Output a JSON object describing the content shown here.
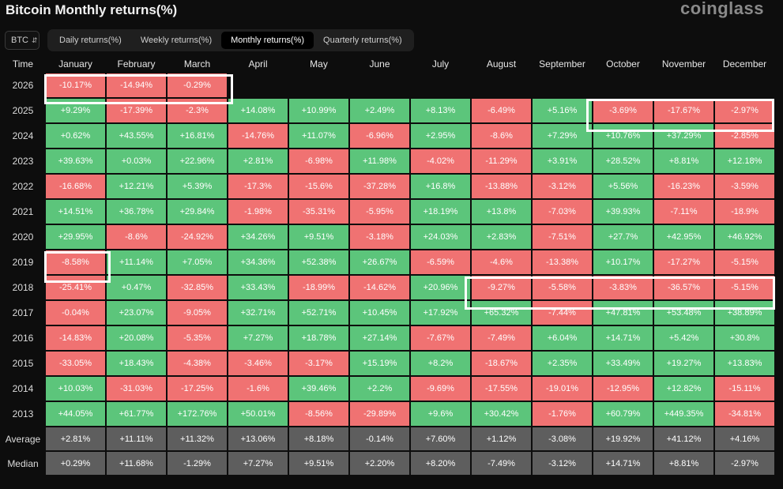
{
  "header": {
    "title": "Bitcoin Monthly returns(%)",
    "brand": "coinglass"
  },
  "asset_select": {
    "value": "BTC"
  },
  "tabs": [
    {
      "label": "Daily returns(%)"
    },
    {
      "label": "Weekly returns(%)"
    },
    {
      "label": "Monthly returns(%)"
    },
    {
      "label": "Quarterly returns(%)"
    }
  ],
  "active_tab": 2,
  "table": {
    "year_header": "Time",
    "months": [
      "January",
      "February",
      "March",
      "April",
      "May",
      "June",
      "July",
      "August",
      "September",
      "October",
      "November",
      "December"
    ],
    "rows": [
      {
        "year": "2026",
        "values": [
          "-10.17%",
          "-14.94%",
          "-0.29%",
          "",
          "",
          "",
          "",
          "",
          "",
          "",
          "",
          ""
        ]
      },
      {
        "year": "2025",
        "values": [
          "+9.29%",
          "-17.39%",
          "-2.3%",
          "+14.08%",
          "+10.99%",
          "+2.49%",
          "+8.13%",
          "-6.49%",
          "+5.16%",
          "-3.69%",
          "-17.67%",
          "-2.97%"
        ]
      },
      {
        "year": "2024",
        "values": [
          "+0.62%",
          "+43.55%",
          "+16.81%",
          "-14.76%",
          "+11.07%",
          "-6.96%",
          "+2.95%",
          "-8.6%",
          "+7.29%",
          "+10.76%",
          "+37.29%",
          "-2.85%"
        ]
      },
      {
        "year": "2023",
        "values": [
          "+39.63%",
          "+0.03%",
          "+22.96%",
          "+2.81%",
          "-6.98%",
          "+11.98%",
          "-4.02%",
          "-11.29%",
          "+3.91%",
          "+28.52%",
          "+8.81%",
          "+12.18%"
        ]
      },
      {
        "year": "2022",
        "values": [
          "-16.68%",
          "+12.21%",
          "+5.39%",
          "-17.3%",
          "-15.6%",
          "-37.28%",
          "+16.8%",
          "-13.88%",
          "-3.12%",
          "+5.56%",
          "-16.23%",
          "-3.59%"
        ]
      },
      {
        "year": "2021",
        "values": [
          "+14.51%",
          "+36.78%",
          "+29.84%",
          "-1.98%",
          "-35.31%",
          "-5.95%",
          "+18.19%",
          "+13.8%",
          "-7.03%",
          "+39.93%",
          "-7.11%",
          "-18.9%"
        ]
      },
      {
        "year": "2020",
        "values": [
          "+29.95%",
          "-8.6%",
          "-24.92%",
          "+34.26%",
          "+9.51%",
          "-3.18%",
          "+24.03%",
          "+2.83%",
          "-7.51%",
          "+27.7%",
          "+42.95%",
          "+46.92%"
        ]
      },
      {
        "year": "2019",
        "values": [
          "-8.58%",
          "+11.14%",
          "+7.05%",
          "+34.36%",
          "+52.38%",
          "+26.67%",
          "-6.59%",
          "-4.6%",
          "-13.38%",
          "+10.17%",
          "-17.27%",
          "-5.15%"
        ]
      },
      {
        "year": "2018",
        "values": [
          "-25.41%",
          "+0.47%",
          "-32.85%",
          "+33.43%",
          "-18.99%",
          "-14.62%",
          "+20.96%",
          "-9.27%",
          "-5.58%",
          "-3.83%",
          "-36.57%",
          "-5.15%"
        ]
      },
      {
        "year": "2017",
        "values": [
          "-0.04%",
          "+23.07%",
          "-9.05%",
          "+32.71%",
          "+52.71%",
          "+10.45%",
          "+17.92%",
          "+65.32%",
          "-7.44%",
          "+47.81%",
          "+53.48%",
          "+38.89%"
        ]
      },
      {
        "year": "2016",
        "values": [
          "-14.83%",
          "+20.08%",
          "-5.35%",
          "+7.27%",
          "+18.78%",
          "+27.14%",
          "-7.67%",
          "-7.49%",
          "+6.04%",
          "+14.71%",
          "+5.42%",
          "+30.8%"
        ]
      },
      {
        "year": "2015",
        "values": [
          "-33.05%",
          "+18.43%",
          "-4.38%",
          "-3.46%",
          "-3.17%",
          "+15.19%",
          "+8.2%",
          "-18.67%",
          "+2.35%",
          "+33.49%",
          "+19.27%",
          "+13.83%"
        ]
      },
      {
        "year": "2014",
        "values": [
          "+10.03%",
          "-31.03%",
          "-17.25%",
          "-1.6%",
          "+39.46%",
          "+2.2%",
          "-9.69%",
          "-17.55%",
          "-19.01%",
          "-12.95%",
          "+12.82%",
          "-15.11%"
        ]
      },
      {
        "year": "2013",
        "values": [
          "+44.05%",
          "+61.77%",
          "+172.76%",
          "+50.01%",
          "-8.56%",
          "-29.89%",
          "+9.6%",
          "+30.42%",
          "-1.76%",
          "+60.79%",
          "+449.35%",
          "-34.81%"
        ]
      }
    ],
    "stats": [
      {
        "label": "Average",
        "values": [
          "+2.81%",
          "+11.11%",
          "+11.32%",
          "+13.06%",
          "+8.18%",
          "-0.14%",
          "+7.60%",
          "+1.12%",
          "-3.08%",
          "+19.92%",
          "+41.12%",
          "+4.16%"
        ]
      },
      {
        "label": "Median",
        "values": [
          "+0.29%",
          "+11.68%",
          "-1.29%",
          "+7.27%",
          "+9.51%",
          "+2.20%",
          "+8.20%",
          "-7.49%",
          "-3.12%",
          "+14.71%",
          "+8.81%",
          "-2.97%"
        ]
      }
    ]
  },
  "colors": {
    "positive": "#5cc57b",
    "negative": "#f07272",
    "stat": "#5e5e5e",
    "highlight": "#ffffff"
  }
}
